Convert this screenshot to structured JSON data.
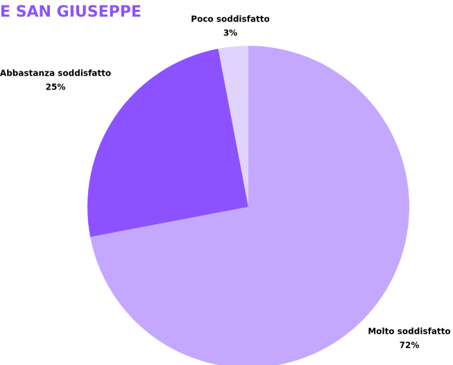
{
  "chart_data": {
    "type": "pie",
    "title": "E SAN GIUSEPPE",
    "categories": [
      "Molto soddisfatto",
      "Abbastanza soddisfatto",
      "Poco soddisfatto"
    ],
    "values": [
      72,
      25,
      3
    ],
    "value_labels": [
      "72%",
      "25%",
      "3%"
    ],
    "colors": [
      "#c4a8ff",
      "#8c52ff",
      "#e0d4ff"
    ]
  }
}
